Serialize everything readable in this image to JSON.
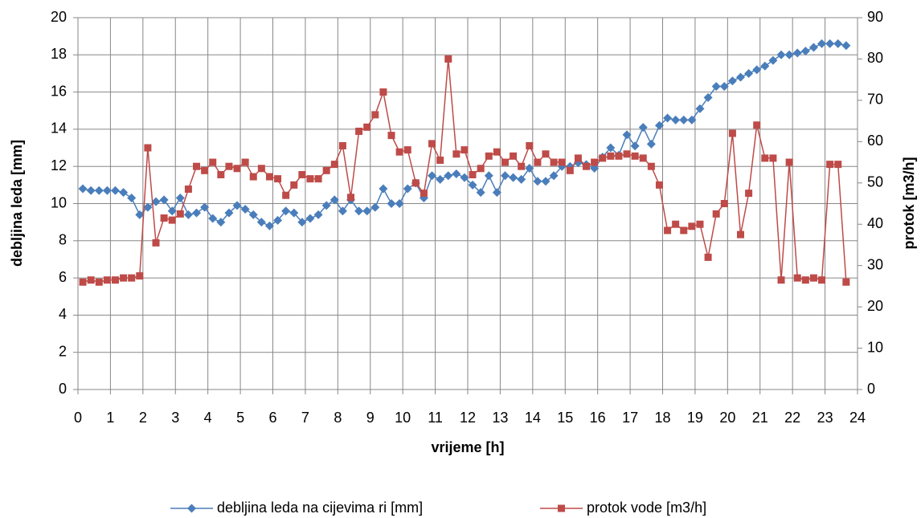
{
  "chart_data": {
    "type": "line",
    "x": [
      0.15,
      0.4,
      0.65,
      0.9,
      1.15,
      1.4,
      1.65,
      1.9,
      2.15,
      2.4,
      2.65,
      2.9,
      3.15,
      3.4,
      3.65,
      3.9,
      4.15,
      4.4,
      4.65,
      4.9,
      5.15,
      5.4,
      5.65,
      5.9,
      6.15,
      6.4,
      6.65,
      6.9,
      7.15,
      7.4,
      7.65,
      7.9,
      8.15,
      8.4,
      8.65,
      8.9,
      9.15,
      9.4,
      9.65,
      9.9,
      10.15,
      10.4,
      10.65,
      10.9,
      11.15,
      11.4,
      11.65,
      11.9,
      12.15,
      12.4,
      12.65,
      12.9,
      13.15,
      13.4,
      13.65,
      13.9,
      14.15,
      14.4,
      14.65,
      14.9,
      15.15,
      15.4,
      15.65,
      15.9,
      16.15,
      16.4,
      16.65,
      16.9,
      17.15,
      17.4,
      17.65,
      17.9,
      18.15,
      18.4,
      18.65,
      18.9,
      19.15,
      19.4,
      19.65,
      19.9,
      20.15,
      20.4,
      20.65,
      20.9,
      21.15,
      21.4,
      21.65,
      21.9,
      22.15,
      22.4,
      22.65,
      22.9,
      23.15,
      23.4,
      23.65
    ],
    "series": [
      {
        "name": "debljina leda na cijevima ri [mm]",
        "color": "#4a7ebb",
        "marker": "diamond",
        "values": [
          10.8,
          10.7,
          10.7,
          10.7,
          10.7,
          10.6,
          10.3,
          9.4,
          9.8,
          10.1,
          10.2,
          9.6,
          10.3,
          9.4,
          9.5,
          9.8,
          9.2,
          9.0,
          9.5,
          9.9,
          9.7,
          9.4,
          9.0,
          8.8,
          9.1,
          9.6,
          9.5,
          9.0,
          9.2,
          9.4,
          9.9,
          10.2,
          9.6,
          10.2,
          9.6,
          9.6,
          9.8,
          10.8,
          10.0,
          10.0,
          10.8,
          11.1,
          10.3,
          11.5,
          11.3,
          11.5,
          11.6,
          11.4,
          11.0,
          10.6,
          11.5,
          10.6,
          11.5,
          11.4,
          11.3,
          11.9,
          11.2,
          11.2,
          11.5,
          12.0,
          12.0,
          12.2,
          12.1,
          11.9,
          12.5,
          13.0,
          12.6,
          13.7,
          13.1,
          14.1,
          13.2,
          14.2,
          14.6,
          14.5,
          14.5,
          14.5,
          15.1,
          15.7,
          16.3,
          16.3,
          16.6,
          16.8,
          17.0,
          17.2,
          17.4,
          17.7,
          18.0,
          18.0,
          18.1,
          18.2,
          18.4,
          18.6,
          18.6,
          18.6,
          18.5
        ]
      },
      {
        "name": "protok vode [m3/h]",
        "color": "#be4b48",
        "marker": "square",
        "axis": "y2",
        "values": [
          26,
          26.5,
          26,
          26.5,
          26.5,
          27,
          27,
          27.5,
          58.5,
          35.5,
          41.5,
          41,
          42.5,
          48.5,
          54,
          53,
          55,
          52,
          54,
          53.5,
          55,
          51.5,
          53.5,
          51.5,
          51,
          47,
          49.5,
          52,
          51,
          51,
          53,
          54.5,
          59,
          46.5,
          62.5,
          63.5,
          66.5,
          72,
          61.5,
          57.5,
          58,
          50,
          47.5,
          59.5,
          55.5,
          80,
          57,
          58,
          52,
          53.5,
          56.5,
          57.5,
          55,
          56.5,
          54,
          59,
          55,
          57,
          55,
          55,
          53,
          56,
          54,
          55,
          56,
          56.5,
          56.5,
          57,
          56.5,
          56,
          54,
          49.5,
          38.5,
          40,
          38.5,
          39.5,
          40,
          32,
          42.5,
          45,
          62,
          37.5,
          47.5,
          64,
          56,
          56,
          26.5,
          55,
          27,
          26.5,
          27,
          26.5,
          54.5,
          54.5,
          26
        ]
      }
    ],
    "xlabel": "vrijeme [h]",
    "ylabel": "debljina leda [mm]",
    "y2label": "protok [m3/h]",
    "xlim": [
      0,
      24
    ],
    "xticks": [
      0,
      1,
      2,
      3,
      4,
      5,
      6,
      7,
      8,
      9,
      10,
      11,
      12,
      13,
      14,
      15,
      16,
      17,
      18,
      19,
      20,
      21,
      22,
      23,
      24
    ],
    "ylim": [
      0,
      20
    ],
    "yticks": [
      0,
      2,
      4,
      6,
      8,
      10,
      12,
      14,
      16,
      18,
      20
    ],
    "y2lim": [
      0,
      90
    ],
    "y2ticks": [
      0,
      10,
      20,
      30,
      40,
      50,
      60,
      70,
      80,
      90
    ],
    "grid": true,
    "legend": "bottom"
  }
}
